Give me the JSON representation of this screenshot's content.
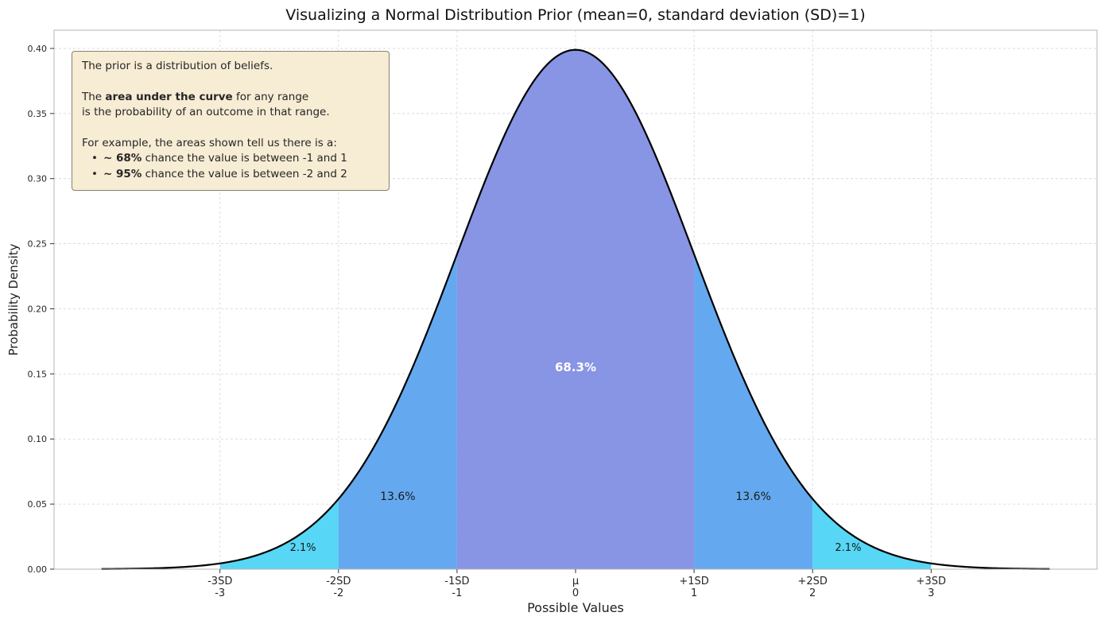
{
  "chart_data": {
    "type": "area",
    "title": "Visualizing a Normal Distribution Prior (mean=0, standard deviation (SD)=1)",
    "xlabel": "Possible Values",
    "ylabel": "Probability Density",
    "xlim": [
      -4.4,
      4.4
    ],
    "ylim": [
      0,
      0.414
    ],
    "grid": true,
    "legend": "none",
    "curve": {
      "distribution": "normal",
      "mean": 0,
      "sd": 1,
      "peak_density": 0.3989,
      "x_range": [
        -4,
        4
      ],
      "color": "#000000",
      "width": 2.2
    },
    "x_ticks": [
      {
        "x": -3,
        "line1": "-3SD",
        "line2": "-3"
      },
      {
        "x": -2,
        "line1": "-2SD",
        "line2": "-2"
      },
      {
        "x": -1,
        "line1": "-1SD",
        "line2": "-1"
      },
      {
        "x": 0,
        "line1": "μ",
        "line2": "0"
      },
      {
        "x": 1,
        "line1": "+1SD",
        "line2": "1"
      },
      {
        "x": 2,
        "line1": "+2SD",
        "line2": "2"
      },
      {
        "x": 3,
        "line1": "+3SD",
        "line2": "3"
      }
    ],
    "y_ticks": [
      0,
      0.05,
      0.1,
      0.15,
      0.2,
      0.25,
      0.3,
      0.35,
      0.4
    ],
    "regions": [
      {
        "from": -3,
        "to": -2,
        "area_pct": "2.1%",
        "fill": "#58d6f5",
        "label": {
          "text": "2.1%",
          "x": -2.3,
          "y": 0.014,
          "color": "#1a1a1a",
          "bold": false,
          "size": 13
        }
      },
      {
        "from": -2,
        "to": -1,
        "area_pct": "13.6%",
        "fill": "#64a9f0",
        "label": {
          "text": "13.6%",
          "x": -1.5,
          "y": 0.053,
          "color": "#1a1a1a",
          "bold": false,
          "size": 14
        }
      },
      {
        "from": -1,
        "to": 1,
        "area_pct": "68.3%",
        "fill": "#8894e4",
        "label": {
          "text": "68.3%",
          "x": 0,
          "y": 0.152,
          "color": "#ffffff",
          "bold": true,
          "size": 15
        }
      },
      {
        "from": 1,
        "to": 2,
        "area_pct": "13.6%",
        "fill": "#64a9f0",
        "label": {
          "text": "13.6%",
          "x": 1.5,
          "y": 0.053,
          "color": "#1a1a1a",
          "bold": false,
          "size": 14
        }
      },
      {
        "from": 2,
        "to": 3,
        "area_pct": "2.1%",
        "fill": "#58d6f5",
        "label": {
          "text": "2.1%",
          "x": 2.3,
          "y": 0.014,
          "color": "#1a1a1a",
          "bold": false,
          "size": 13
        }
      }
    ],
    "style": {
      "grid_color": "#d5d5d5",
      "spine_color": "#b5b5b5",
      "tick_color": "#333333",
      "tick_label_color": "#262626"
    }
  },
  "annotation": {
    "background": "#f7ecd4",
    "border": "#85816f",
    "paragraphs": [
      {
        "gap_before": false,
        "bullet": false,
        "segments": [
          {
            "text": "The prior is a distribution of beliefs.",
            "bold": false
          }
        ]
      },
      {
        "gap_before": true,
        "bullet": false,
        "segments": [
          {
            "text": "The ",
            "bold": false
          },
          {
            "text": "area under the curve",
            "bold": true
          },
          {
            "text": " for any range",
            "bold": false
          }
        ]
      },
      {
        "gap_before": false,
        "bullet": false,
        "segments": [
          {
            "text": "is the probability of an outcome in that range.",
            "bold": false
          }
        ]
      },
      {
        "gap_before": true,
        "bullet": false,
        "segments": [
          {
            "text": "For example, the areas shown tell us there is a:",
            "bold": false
          }
        ]
      },
      {
        "gap_before": false,
        "bullet": true,
        "segments": [
          {
            "text": "~ 68%",
            "bold": true
          },
          {
            "text": " chance the value is between -1 and 1",
            "bold": false
          }
        ]
      },
      {
        "gap_before": false,
        "bullet": true,
        "segments": [
          {
            "text": "~ 95%",
            "bold": true
          },
          {
            "text": " chance the value is between -2 and 2",
            "bold": false
          }
        ]
      }
    ]
  }
}
